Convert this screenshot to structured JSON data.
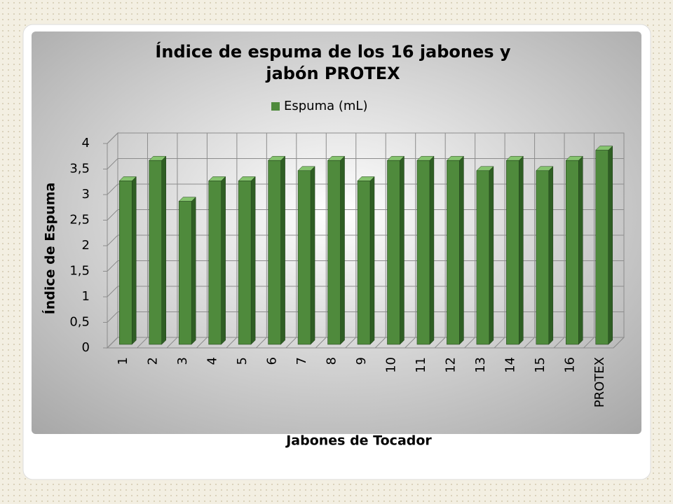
{
  "chart_data": {
    "type": "bar3d",
    "title": "Índice de espuma de los 16 jabones y",
    "title_line2": "jabón PROTEX",
    "x_label": "Jabones de Tocador",
    "y_label": "Índice de Espuma",
    "categories": [
      "1",
      "2",
      "3",
      "4",
      "5",
      "6",
      "7",
      "8",
      "9",
      "10",
      "11",
      "12",
      "13",
      "14",
      "15",
      "16",
      "PROTEX"
    ],
    "series": [
      {
        "name": "Espuma (mL)",
        "color": "#4f8a3c",
        "values": [
          3.2,
          3.6,
          2.8,
          3.2,
          3.2,
          3.6,
          3.4,
          3.6,
          3.2,
          3.6,
          3.6,
          3.6,
          3.4,
          3.6,
          3.4,
          3.6,
          3.8
        ]
      }
    ],
    "ylim": [
      0,
      4
    ],
    "yticks": [
      0,
      {
        "value": 0.5,
        "label": "0,5"
      },
      1,
      {
        "value": 1.5,
        "label": "1,5"
      },
      2,
      {
        "value": 2.5,
        "label": "2,5"
      },
      3,
      {
        "value": 3.5,
        "label": "3,5"
      },
      4
    ],
    "grid": true,
    "legend": "top"
  }
}
